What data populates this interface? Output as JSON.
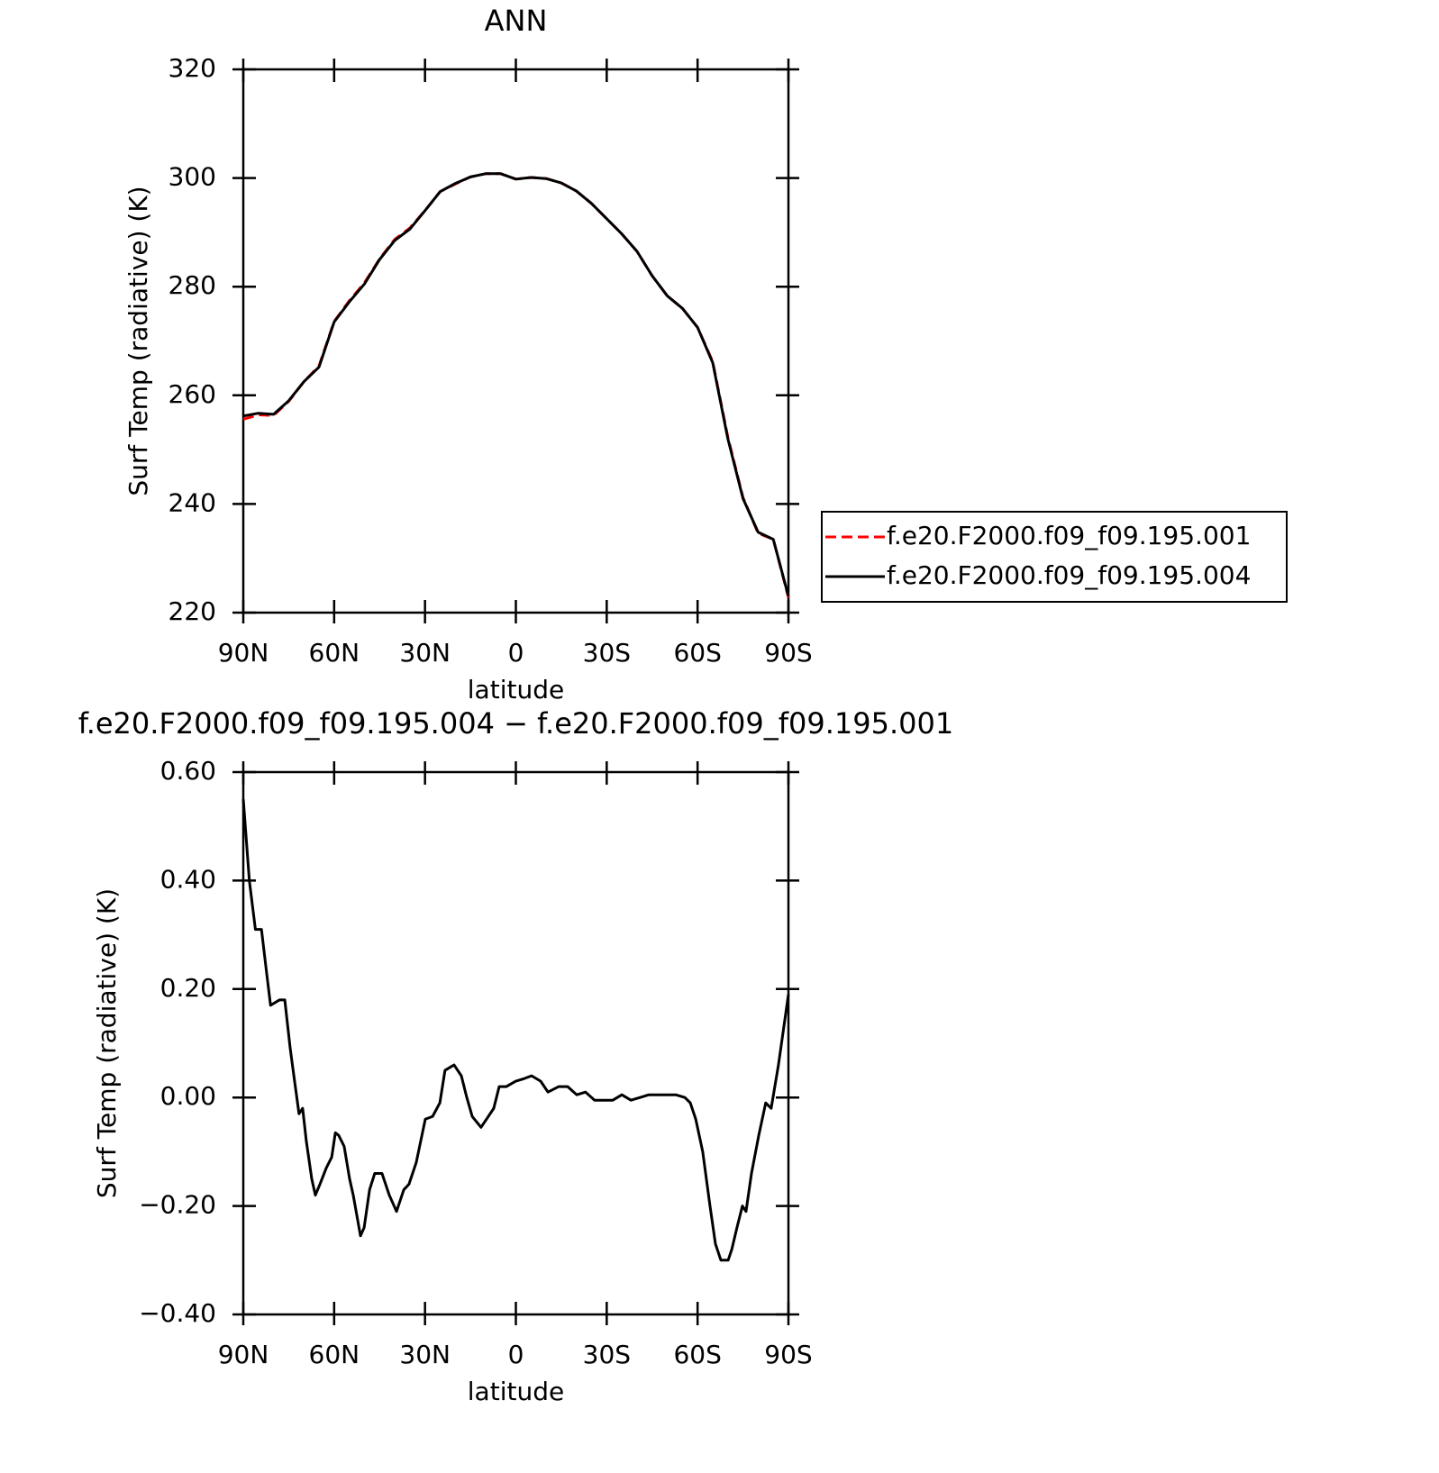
{
  "chart_data": [
    {
      "type": "line",
      "title": "ANN",
      "xlabel": "latitude",
      "ylabel": "Surf Temp (radiative) (K)",
      "x": [
        90,
        85,
        80,
        75,
        70,
        65,
        60,
        55,
        50,
        45,
        40,
        35,
        30,
        25,
        20,
        15,
        10,
        5,
        0,
        -5,
        -10,
        -15,
        -20,
        -25,
        -30,
        -35,
        -40,
        -45,
        -50,
        -55,
        -60,
        -65,
        -70,
        -75,
        -80,
        -85,
        -90
      ],
      "xlim": [
        90,
        -90
      ],
      "xticks": [
        {
          "value": 90,
          "label": "90N"
        },
        {
          "value": 60,
          "label": "60N"
        },
        {
          "value": 30,
          "label": "30N"
        },
        0,
        {
          "value": -30,
          "label": "30S"
        },
        {
          "value": -60,
          "label": "60S"
        },
        {
          "value": -90,
          "label": "90S"
        }
      ],
      "ylim": [
        220,
        320
      ],
      "yticks": [
        220,
        240,
        260,
        280,
        300,
        320
      ],
      "legend": "right",
      "series": [
        {
          "name": "f.e20.F2000.f09_f09.195.001",
          "color": "#ff0000",
          "line_style": "dashed",
          "values": [
            255.6,
            256.4,
            256.3,
            258.9,
            262.5,
            265.4,
            273.6,
            277.4,
            280.7,
            285.1,
            288.7,
            290.8,
            294.0,
            297.5,
            298.9,
            300.2,
            300.8,
            300.8,
            299.8,
            300.1,
            299.9,
            299.1,
            297.6,
            295.3,
            292.5,
            289.7,
            286.5,
            282.0,
            278.3,
            276.0,
            272.5,
            266.2,
            252.3,
            241.2,
            234.6,
            233.5,
            222.8
          ]
        },
        {
          "name": "f.e20.F2000.f09_f09.195.004",
          "color": "#000000",
          "line_style": "solid",
          "values": [
            256.2,
            256.7,
            256.5,
            259.0,
            262.5,
            265.2,
            273.5,
            277.2,
            280.5,
            285.0,
            288.5,
            290.6,
            294.0,
            297.5,
            299.0,
            300.2,
            300.8,
            300.8,
            299.8,
            300.1,
            299.9,
            299.1,
            297.6,
            295.3,
            292.5,
            289.7,
            286.5,
            282.0,
            278.3,
            276.0,
            272.5,
            266.0,
            252.0,
            241.0,
            234.8,
            233.5,
            223.0
          ]
        }
      ]
    },
    {
      "type": "line",
      "title": "f.e20.F2000.f09_f09.195.004 − f.e20.F2000.f09_f09.195.001",
      "xlabel": "latitude",
      "ylabel": "Surf Temp (radiative) (K)",
      "x": [
        90,
        88,
        86,
        84,
        82.3,
        81,
        78,
        76.3,
        74.5,
        73.3,
        71.6,
        70.4,
        69.2,
        67.4,
        66.2,
        64.7,
        62.6,
        60.8,
        59.6,
        58.5,
        56.7,
        54.9,
        53.7,
        51.3,
        50.1,
        48.3,
        46.6,
        44.2,
        41.8,
        39.4,
        37,
        35.3,
        32.9,
        29.9,
        27.5,
        25.1,
        23.4,
        20.4,
        18,
        16.2,
        14.4,
        11.5,
        9.7,
        7.3,
        5.5,
        3.2,
        0.1,
        -2.8,
        -5.2,
        -8.2,
        -10.6,
        -14.1,
        -17.1,
        -20.1,
        -23,
        -26,
        -29,
        -32,
        -35,
        -38,
        -41,
        -43.9,
        -46.9,
        -49.8,
        -52.8,
        -55.8,
        -57.6,
        -59.4,
        -61.7,
        -64.1,
        -65.9,
        -67.7,
        -70.1,
        -71.3,
        -73,
        -74.8,
        -76,
        -77.8,
        -80.2,
        -82.5,
        -84.3,
        -86.7,
        -90
      ],
      "xlim": [
        90,
        -90
      ],
      "xticks": [
        {
          "value": 90,
          "label": "90N"
        },
        {
          "value": 60,
          "label": "60N"
        },
        {
          "value": 30,
          "label": "30N"
        },
        0,
        {
          "value": -30,
          "label": "30S"
        },
        {
          "value": -60,
          "label": "60S"
        },
        {
          "value": -90,
          "label": "90S"
        }
      ],
      "ylim": [
        -0.4,
        0.6
      ],
      "yticks": [
        {
          "value": -0.4,
          "label": "−0.40"
        },
        {
          "value": -0.2,
          "label": "−0.20"
        },
        {
          "value": 0,
          "label": "0.00"
        },
        {
          "value": 0.2,
          "label": "0.20"
        },
        {
          "value": 0.4,
          "label": "0.40"
        },
        {
          "value": 0.6,
          "label": "0.60"
        }
      ],
      "color": "#000000",
      "values": [
        0.55,
        0.4,
        0.31,
        0.31,
        0.23,
        0.17,
        0.18,
        0.18,
        0.09,
        0.04,
        -0.03,
        -0.02,
        -0.08,
        -0.15,
        -0.18,
        -0.16,
        -0.13,
        -0.11,
        -0.065,
        -0.07,
        -0.09,
        -0.15,
        -0.18,
        -0.255,
        -0.24,
        -0.17,
        -0.14,
        -0.14,
        -0.18,
        -0.21,
        -0.17,
        -0.16,
        -0.12,
        -0.04,
        -0.035,
        -0.01,
        0.05,
        0.06,
        0.04,
        0,
        -0.035,
        -0.055,
        -0.04,
        -0.02,
        0.02,
        0.02,
        0.03,
        0.035,
        0.04,
        0.03,
        0.01,
        0.02,
        0.02,
        0.005,
        0.01,
        -0.005,
        -0.005,
        -0.005,
        0.005,
        -0.005,
        0,
        0.005,
        0.005,
        0.005,
        0.005,
        0,
        -0.01,
        -0.04,
        -0.1,
        -0.2,
        -0.27,
        -0.3,
        -0.3,
        -0.28,
        -0.24,
        -0.2,
        -0.21,
        -0.14,
        -0.07,
        -0.01,
        -0.02,
        0.06,
        0.19
      ]
    }
  ]
}
